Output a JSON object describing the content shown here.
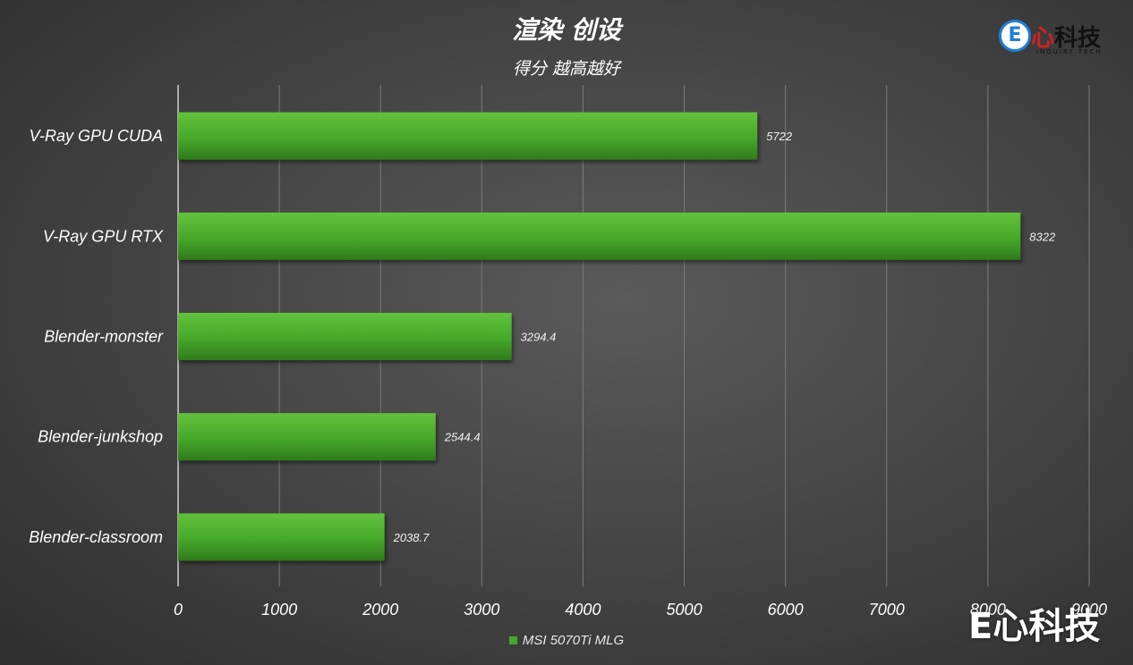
{
  "header": {
    "title": "渲染 创设",
    "subtitle": "得分 越高越好"
  },
  "logo": {
    "e_letter": "E",
    "heart": "心",
    "brand": "科技",
    "tagline": "INQUIRY TECH"
  },
  "watermark": "E心科技",
  "colors": {
    "bar": "#46a82a",
    "bar_dark": "#2f7a1c",
    "bar_light": "#62c23c",
    "gridline": "#7a7a7a",
    "axis": "#cfcfcf"
  },
  "chart_data": {
    "type": "bar",
    "orientation": "horizontal",
    "title": "渲染 创设",
    "subtitle": "得分 越高越好",
    "categories": [
      "V-Ray GPU CUDA",
      "V-Ray GPU RTX",
      "Blender-monster",
      "Blender-junkshop",
      "Blender-classroom"
    ],
    "series": [
      {
        "name": "MSI 5070Ti MLG",
        "values": [
          5722,
          8322,
          3294.4,
          2544.4,
          2038.7
        ],
        "labels": [
          "5722",
          "8322",
          "3294.4",
          "2544.4",
          "2038.7"
        ]
      }
    ],
    "xlim": [
      0,
      9000
    ],
    "xticks": [
      0,
      1000,
      2000,
      3000,
      4000,
      5000,
      6000,
      7000,
      8000,
      9000
    ],
    "xtick_labels": [
      "0",
      "1000",
      "2000",
      "3000",
      "4000",
      "5000",
      "6000",
      "7000",
      "8000",
      "9000"
    ],
    "grid": true,
    "legend": "bottom"
  }
}
